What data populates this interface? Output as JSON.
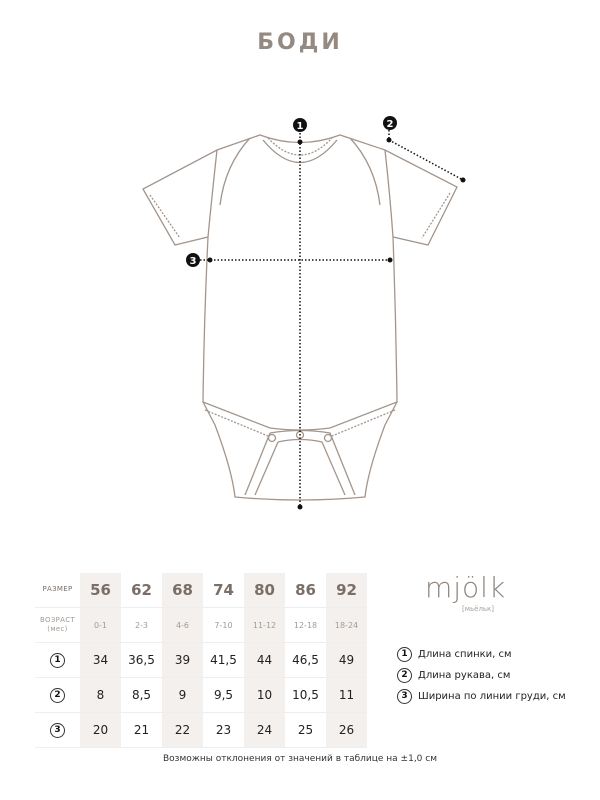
{
  "title": "БОДИ",
  "colors": {
    "outline": "#a3958c",
    "shade": "#f4f0ed",
    "title": "#958a82"
  },
  "diagram": {
    "markers": [
      "1",
      "2",
      "3"
    ]
  },
  "table": {
    "size_label": "РАЗМЕР",
    "age_label": "ВОЗРАСТ",
    "age_unit": "(мес)",
    "sizes": [
      "56",
      "62",
      "68",
      "74",
      "80",
      "86",
      "92"
    ],
    "ages": [
      "0-1",
      "2-3",
      "4-6",
      "7-10",
      "11-12",
      "12-18",
      "18-24"
    ],
    "rows": [
      {
        "marker": "1",
        "values": [
          "34",
          "36,5",
          "39",
          "41,5",
          "44",
          "46,5",
          "49"
        ]
      },
      {
        "marker": "2",
        "values": [
          "8",
          "8,5",
          "9",
          "9,5",
          "10",
          "10,5",
          "11"
        ]
      },
      {
        "marker": "3",
        "values": [
          "20",
          "21",
          "22",
          "23",
          "24",
          "25",
          "26"
        ]
      }
    ]
  },
  "brand": {
    "logo": "mjölk",
    "sub": "[мьёльк]"
  },
  "legend": [
    {
      "marker": "1",
      "label": "Длина спинки, см"
    },
    {
      "marker": "2",
      "label": "Длина рукава, см"
    },
    {
      "marker": "3",
      "label": "Ширина по линии груди, см"
    }
  ],
  "footer": "Возможны отклонения от значений в таблице на ±1,0 см"
}
